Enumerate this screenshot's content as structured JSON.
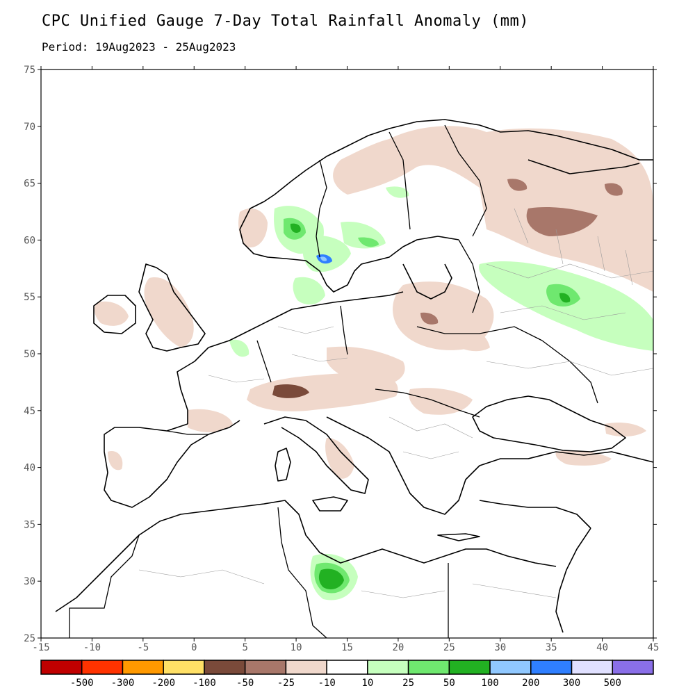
{
  "header": {
    "title": "CPC Unified Gauge 7-Day Total Rainfall Anomaly (mm)",
    "period": "Period: 19Aug2023 - 25Aug2023"
  },
  "map": {
    "region": "Europe",
    "lon_range": [
      -15,
      45
    ],
    "lat_range": [
      25,
      75
    ],
    "x_ticks": [
      "-15",
      "-10",
      "-5",
      "0",
      "5",
      "10",
      "15",
      "20",
      "25",
      "30",
      "35",
      "40",
      "45"
    ],
    "y_ticks": [
      "25",
      "30",
      "35",
      "40",
      "45",
      "50",
      "55",
      "60",
      "65",
      "70",
      "75"
    ],
    "colors": {
      "land": "#ffffff",
      "border": "#000000",
      "admin_border": "#9a9a9a"
    }
  },
  "colorbar": {
    "colors": [
      "#c00000",
      "#ff3300",
      "#ff9900",
      "#ffe066",
      "#7a4a3a",
      "#a8776a",
      "#f0d8cc",
      "#ffffff",
      "#c6ffbe",
      "#6fe86f",
      "#22b122",
      "#90c8ff",
      "#2f7fff",
      "#e0e0ff",
      "#8a6fe8"
    ],
    "labels": [
      "-500",
      "-300",
      "-200",
      "-100",
      "-50",
      "-25",
      "-10",
      "10",
      "25",
      "50",
      "100",
      "200",
      "300",
      "500"
    ]
  }
}
